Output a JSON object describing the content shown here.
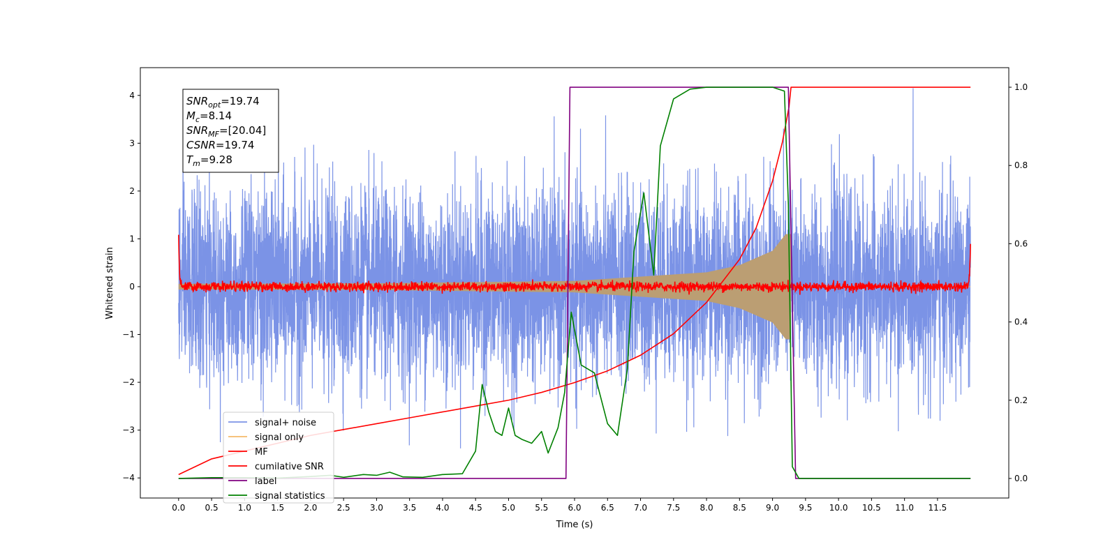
{
  "chart_data": {
    "type": "line",
    "title": "",
    "xlabel": "Time (s)",
    "ylabel": "Whitened strain",
    "xlim": [
      -0.58,
      12.58
    ],
    "ylim": [
      -4.42,
      4.58
    ],
    "y2lim": [
      -0.05,
      1.05
    ],
    "x_ticks": [
      "0.0",
      "0.5",
      "1.0",
      "1.5",
      "2.0",
      "2.5",
      "3.0",
      "3.5",
      "4.0",
      "4.5",
      "5.0",
      "5.5",
      "6.0",
      "6.5",
      "7.0",
      "7.5",
      "8.0",
      "8.5",
      "9.0",
      "9.5",
      "10.0",
      "10.5",
      "11.0",
      "11.5"
    ],
    "y_ticks": [
      "4",
      "3",
      "2",
      "1",
      "0",
      "−1",
      "−2",
      "−3",
      "−4"
    ],
    "y2_ticks": [
      "1.0",
      "0.8",
      "0.6",
      "0.4",
      "0.2",
      "0.0"
    ],
    "grid": false,
    "legend_position": "lower-left",
    "annotation": [
      {
        "base": "SNR",
        "sub": "opt",
        "value": "=19.74"
      },
      {
        "base": "M",
        "sub": "c",
        "value": "=8.14"
      },
      {
        "base": "SNR",
        "sub": "MF",
        "value": "=[20.04]"
      },
      {
        "base": "CSNR",
        "sub": "",
        "value": "=19.74"
      },
      {
        "base": "T",
        "sub": "m",
        "value": "=9.28"
      }
    ],
    "series": [
      {
        "name": "signal+ noise",
        "color": "#7b93e6",
        "axis": "left",
        "kind": "noise",
        "sigma": 1.0,
        "x_range": [
          0,
          12
        ],
        "chirp_end": 9.28
      },
      {
        "name": "signal only",
        "color": "#f5b96a",
        "axis": "left",
        "kind": "chirp",
        "x_range": [
          0,
          12
        ],
        "envelope": [
          [
            0,
            0.06
          ],
          [
            3,
            0.07
          ],
          [
            6,
            0.12
          ],
          [
            8,
            0.3
          ],
          [
            8.5,
            0.45
          ],
          [
            9.0,
            0.75
          ],
          [
            9.2,
            1.1
          ],
          [
            9.28,
            1.1
          ]
        ],
        "chirp_end": 9.28
      },
      {
        "name": "MF",
        "color": "#ff0000",
        "axis": "left",
        "kind": "mf",
        "x_range": [
          0,
          12
        ],
        "level": 0.0,
        "ripple": 0.05,
        "edge_start": 1.0,
        "edge_end": 0.95
      },
      {
        "name": "cumilative SNR",
        "color": "#ff0000",
        "axis": "right",
        "points": [
          [
            0.0,
            0.01
          ],
          [
            0.5,
            0.05
          ],
          [
            1.0,
            0.07
          ],
          [
            1.5,
            0.09
          ],
          [
            2.0,
            0.11
          ],
          [
            2.5,
            0.125
          ],
          [
            3.0,
            0.14
          ],
          [
            3.5,
            0.155
          ],
          [
            4.0,
            0.17
          ],
          [
            4.5,
            0.185
          ],
          [
            5.0,
            0.2
          ],
          [
            5.5,
            0.22
          ],
          [
            6.0,
            0.245
          ],
          [
            6.5,
            0.275
          ],
          [
            7.0,
            0.315
          ],
          [
            7.5,
            0.37
          ],
          [
            8.0,
            0.45
          ],
          [
            8.5,
            0.56
          ],
          [
            8.75,
            0.64
          ],
          [
            9.0,
            0.76
          ],
          [
            9.15,
            0.86
          ],
          [
            9.25,
            0.95
          ],
          [
            9.28,
            1.0
          ],
          [
            12.0,
            1.0
          ]
        ]
      },
      {
        "name": "label",
        "color": "#800080",
        "axis": "right",
        "points": [
          [
            0.0,
            0.0
          ],
          [
            5.87,
            0.0
          ],
          [
            5.93,
            1.0
          ],
          [
            9.24,
            1.0
          ],
          [
            9.35,
            0.0
          ],
          [
            12.0,
            0.0
          ]
        ]
      },
      {
        "name": "signal statistics",
        "color": "#008000",
        "axis": "right",
        "points": [
          [
            0.0,
            0.0
          ],
          [
            0.5,
            0.002
          ],
          [
            1.0,
            0.002
          ],
          [
            1.5,
            0.001
          ],
          [
            2.0,
            0.005
          ],
          [
            2.3,
            0.008
          ],
          [
            2.5,
            0.003
          ],
          [
            2.8,
            0.01
          ],
          [
            3.0,
            0.008
          ],
          [
            3.2,
            0.016
          ],
          [
            3.4,
            0.004
          ],
          [
            3.7,
            0.003
          ],
          [
            4.0,
            0.01
          ],
          [
            4.3,
            0.012
          ],
          [
            4.5,
            0.07
          ],
          [
            4.6,
            0.24
          ],
          [
            4.7,
            0.17
          ],
          [
            4.8,
            0.12
          ],
          [
            4.9,
            0.11
          ],
          [
            5.0,
            0.18
          ],
          [
            5.1,
            0.11
          ],
          [
            5.2,
            0.1
          ],
          [
            5.35,
            0.09
          ],
          [
            5.5,
            0.12
          ],
          [
            5.6,
            0.065
          ],
          [
            5.75,
            0.13
          ],
          [
            5.85,
            0.22
          ],
          [
            5.95,
            0.425
          ],
          [
            6.1,
            0.29
          ],
          [
            6.3,
            0.27
          ],
          [
            6.5,
            0.14
          ],
          [
            6.65,
            0.11
          ],
          [
            6.8,
            0.28
          ],
          [
            6.9,
            0.58
          ],
          [
            7.05,
            0.73
          ],
          [
            7.2,
            0.52
          ],
          [
            7.3,
            0.85
          ],
          [
            7.5,
            0.97
          ],
          [
            7.75,
            0.995
          ],
          [
            8.0,
            1.0
          ],
          [
            8.5,
            1.0
          ],
          [
            9.0,
            1.0
          ],
          [
            9.18,
            0.99
          ],
          [
            9.24,
            0.7
          ],
          [
            9.3,
            0.03
          ],
          [
            9.4,
            0.0
          ],
          [
            12.0,
            0.0
          ]
        ]
      }
    ]
  }
}
